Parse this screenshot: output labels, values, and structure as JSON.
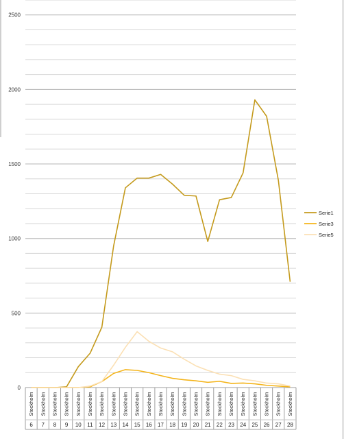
{
  "chart_data": {
    "type": "line",
    "title": "",
    "xlabel": "",
    "ylabel": "",
    "ylim": [
      0,
      2600
    ],
    "y_ticks": [
      0,
      500,
      1000,
      1500,
      2000,
      2500
    ],
    "grid": true,
    "legend_position": "right",
    "categories": [
      "6",
      "7",
      "8",
      "9",
      "10",
      "11",
      "12",
      "13",
      "14",
      "15",
      "16",
      "17",
      "18",
      "19",
      "20",
      "21",
      "22",
      "23",
      "24",
      "25",
      "26",
      "27",
      "28"
    ],
    "category_group_label": "Stockholm",
    "series": [
      {
        "name": "Serie1",
        "color": "#c49a1c",
        "values": [
          0,
          0,
          0,
          5,
          140,
          230,
          405,
          950,
          1340,
          1405,
          1405,
          1430,
          1365,
          1290,
          1285,
          980,
          1260,
          1275,
          1440,
          1930,
          1820,
          1390,
          710
        ]
      },
      {
        "name": "Serie3",
        "color": "#f4b41a",
        "values": [
          0,
          0,
          0,
          0,
          0,
          5,
          40,
          95,
          120,
          115,
          100,
          80,
          62,
          52,
          45,
          35,
          42,
          28,
          30,
          25,
          15,
          10,
          5
        ]
      },
      {
        "name": "Serie5",
        "color": "#fbe0b4",
        "values": [
          0,
          0,
          0,
          0,
          0,
          10,
          40,
          150,
          270,
          375,
          310,
          265,
          240,
          190,
          145,
          115,
          90,
          80,
          55,
          45,
          30,
          25,
          10
        ]
      }
    ]
  }
}
